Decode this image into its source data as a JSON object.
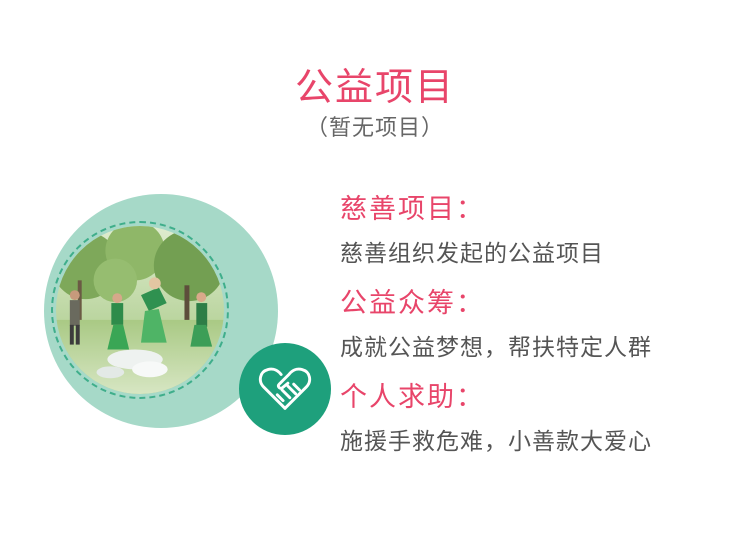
{
  "header": {
    "title": "公益项目",
    "subtitle": "（暂无项目）"
  },
  "illustration": {
    "photo_desc_icon": "volunteers-cleanup-photo",
    "badge_icon": "handshake-heart-icon",
    "colors": {
      "ring": "#a6d9c8",
      "badge": "#1ea07c",
      "dash": "#3fae8b"
    }
  },
  "sections": [
    {
      "heading": "慈善项目：",
      "description": "慈善组织发起的公益项目"
    },
    {
      "heading": "公益众筹：",
      "description": "成就公益梦想，帮扶特定人群"
    },
    {
      "heading": "个人求助：",
      "description": "施援手救危难，小善款大爱心"
    }
  ],
  "colors": {
    "accent": "#e8456a",
    "text": "#555555",
    "muted": "#666666"
  }
}
